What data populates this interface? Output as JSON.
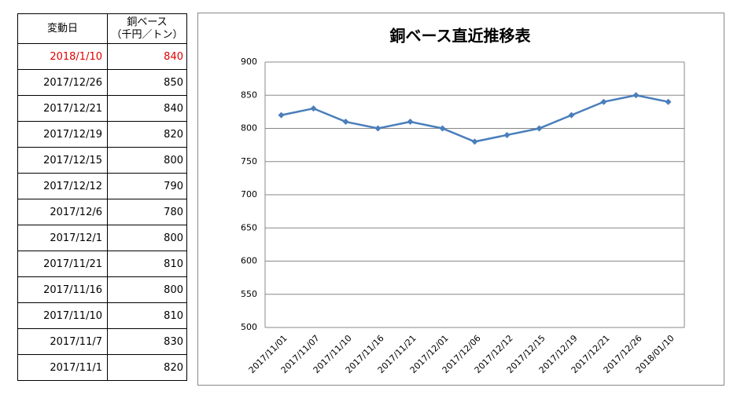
{
  "table": {
    "header": {
      "date": "変動日",
      "price": [
        "銅ベース",
        "（千円／トン）"
      ]
    },
    "rows": [
      [
        "2018/1/10",
        840
      ],
      [
        "2017/12/26",
        850
      ],
      [
        "2017/12/21",
        840
      ],
      [
        "2017/12/19",
        820
      ],
      [
        "2017/12/15",
        800
      ],
      [
        "2017/12/12",
        790
      ],
      [
        "2017/12/6",
        780
      ],
      [
        "2017/12/1",
        800
      ],
      [
        "2017/11/21",
        810
      ],
      [
        "2017/11/16",
        800
      ],
      [
        "2017/11/10",
        810
      ],
      [
        "2017/11/7",
        830
      ],
      [
        "2017/11/1",
        820
      ]
    ]
  },
  "chart_data": {
    "type": "line",
    "title": "銅ベース直近推移表",
    "categories": [
      "2017/11/01",
      "2017/11/07",
      "2017/11/10",
      "2017/11/16",
      "2017/11/21",
      "2017/12/01",
      "2017/12/06",
      "2017/12/12",
      "2017/12/15",
      "2017/12/19",
      "2017/12/21",
      "2017/12/26",
      "2018/01/10"
    ],
    "values": [
      820,
      830,
      810,
      800,
      810,
      800,
      780,
      790,
      800,
      820,
      840,
      850,
      840
    ],
    "color": "#4a7ebb",
    "ylim": [
      500,
      900
    ],
    "yticks": [
      500,
      550,
      600,
      650,
      700,
      750,
      800,
      850,
      900
    ],
    "grid": true
  }
}
